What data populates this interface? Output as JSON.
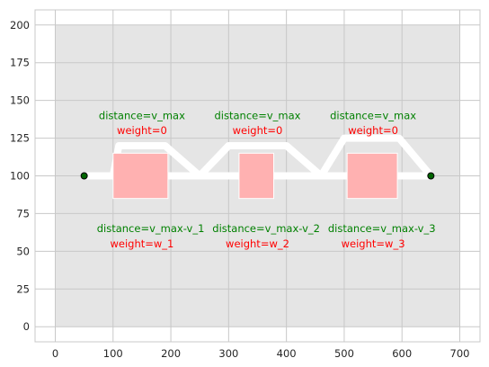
{
  "chart_data": {
    "type": "line",
    "xlim": [
      -35,
      735
    ],
    "ylim": [
      -10,
      210
    ],
    "x_ticks": [
      0,
      100,
      200,
      300,
      400,
      500,
      600,
      700
    ],
    "y_ticks": [
      0,
      25,
      50,
      75,
      100,
      125,
      150,
      175,
      200
    ],
    "grid": true,
    "shaded_region": {
      "x": [
        0,
        700
      ],
      "y": [
        0,
        200
      ],
      "color": "#e5e5e5"
    },
    "colors": {
      "path": "#ffffff",
      "obstacle_fill": "#ffb1b1",
      "node_fill": "#006400",
      "distance_text": "#008000",
      "weight_text": "#ff0000",
      "grid": "#c8c8c8"
    },
    "nodes": [
      {
        "x": 50,
        "y": 100
      },
      {
        "x": 650,
        "y": 100
      }
    ],
    "paths": [
      {
        "name": "upper",
        "points": [
          [
            50,
            100
          ],
          [
            100,
            100
          ],
          [
            110,
            120
          ],
          [
            190,
            120
          ],
          [
            250,
            100
          ],
          [
            300,
            120
          ],
          [
            400,
            120
          ],
          [
            460,
            100
          ],
          [
            500,
            125
          ],
          [
            595,
            125
          ],
          [
            650,
            100
          ]
        ]
      },
      {
        "name": "lower",
        "points": [
          [
            50,
            100
          ],
          [
            650,
            100
          ]
        ]
      }
    ],
    "obstacles": [
      {
        "x0": 100,
        "x1": 195,
        "y0": 85,
        "y1": 115
      },
      {
        "x0": 318,
        "x1": 378,
        "y0": 85,
        "y1": 115
      },
      {
        "x0": 505,
        "x1": 592,
        "y0": 85,
        "y1": 115
      }
    ],
    "annotations": [
      {
        "x": 150,
        "y": 140,
        "text": "distance=v_max",
        "kind": "distance"
      },
      {
        "x": 150,
        "y": 130,
        "text": "weight=0",
        "kind": "weight"
      },
      {
        "x": 350,
        "y": 140,
        "text": "distance=v_max",
        "kind": "distance"
      },
      {
        "x": 350,
        "y": 130,
        "text": "weight=0",
        "kind": "weight"
      },
      {
        "x": 550,
        "y": 140,
        "text": "distance=v_max",
        "kind": "distance"
      },
      {
        "x": 550,
        "y": 130,
        "text": "weight=0",
        "kind": "weight"
      },
      {
        "x": 165,
        "y": 65,
        "text": "distance=v_max-v_1",
        "kind": "distance"
      },
      {
        "x": 150,
        "y": 55,
        "text": "weight=w_1",
        "kind": "weight"
      },
      {
        "x": 365,
        "y": 65,
        "text": "distance=v_max-v_2",
        "kind": "distance"
      },
      {
        "x": 350,
        "y": 55,
        "text": "weight=w_2",
        "kind": "weight"
      },
      {
        "x": 565,
        "y": 65,
        "text": "distance=v_max-v_3",
        "kind": "distance"
      },
      {
        "x": 550,
        "y": 55,
        "text": "weight=w_3",
        "kind": "weight"
      }
    ]
  }
}
